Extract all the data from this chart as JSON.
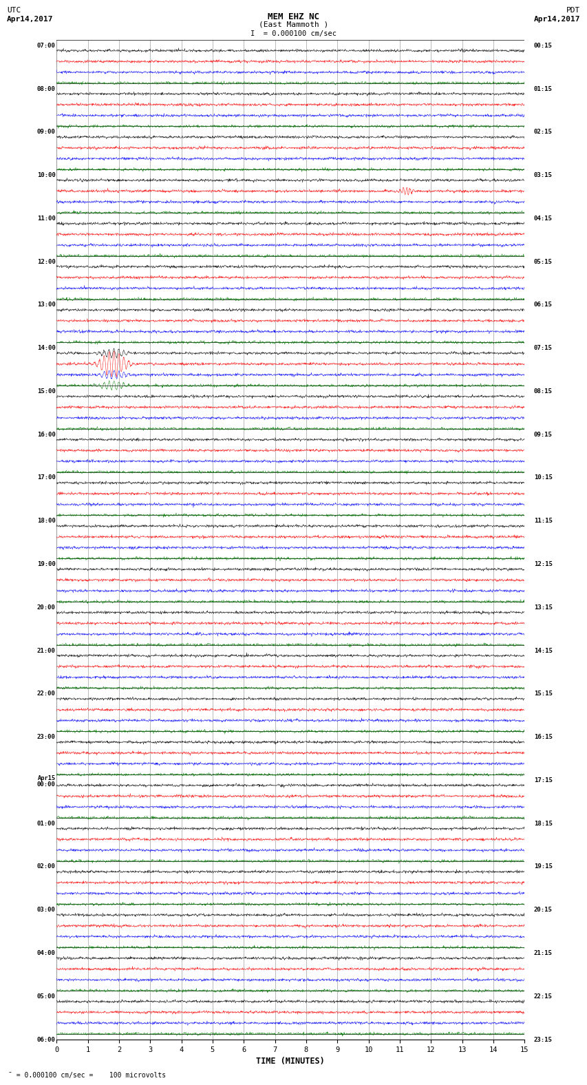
{
  "title_line1": "MEM EHZ NC",
  "title_line2": "(East Mammoth )",
  "scale_label": "I  = 0.000100 cm/sec",
  "left_header_line1": "UTC",
  "left_header_line2": "Apr14,2017",
  "right_header_line1": "PDT",
  "right_header_line2": "Apr14,2017",
  "bottom_label": "TIME (MINUTES)",
  "bottom_note": "= 0.000100 cm/sec =    100 microvolts",
  "utc_labels": [
    "07:00",
    "08:00",
    "09:00",
    "10:00",
    "11:00",
    "12:00",
    "13:00",
    "14:00",
    "15:00",
    "16:00",
    "17:00",
    "18:00",
    "19:00",
    "20:00",
    "21:00",
    "22:00",
    "23:00",
    "Apr15\n00:00",
    "01:00",
    "02:00",
    "03:00",
    "04:00",
    "05:00",
    "06:00"
  ],
  "pdt_labels": [
    "00:15",
    "01:15",
    "02:15",
    "03:15",
    "04:15",
    "05:15",
    "06:15",
    "07:15",
    "08:15",
    "09:15",
    "10:15",
    "11:15",
    "12:15",
    "13:15",
    "14:15",
    "15:15",
    "16:15",
    "17:15",
    "18:15",
    "19:15",
    "20:15",
    "21:15",
    "22:15",
    "23:15"
  ],
  "trace_colors": [
    "black",
    "red",
    "blue",
    "green"
  ],
  "n_hour_blocks": 23,
  "rows_per_block": 4,
  "n_minutes": 15,
  "background_color": "#ffffff",
  "fig_width": 8.5,
  "fig_height": 16.13,
  "noise_amplitude": 0.06,
  "samples_per_row": 1500
}
